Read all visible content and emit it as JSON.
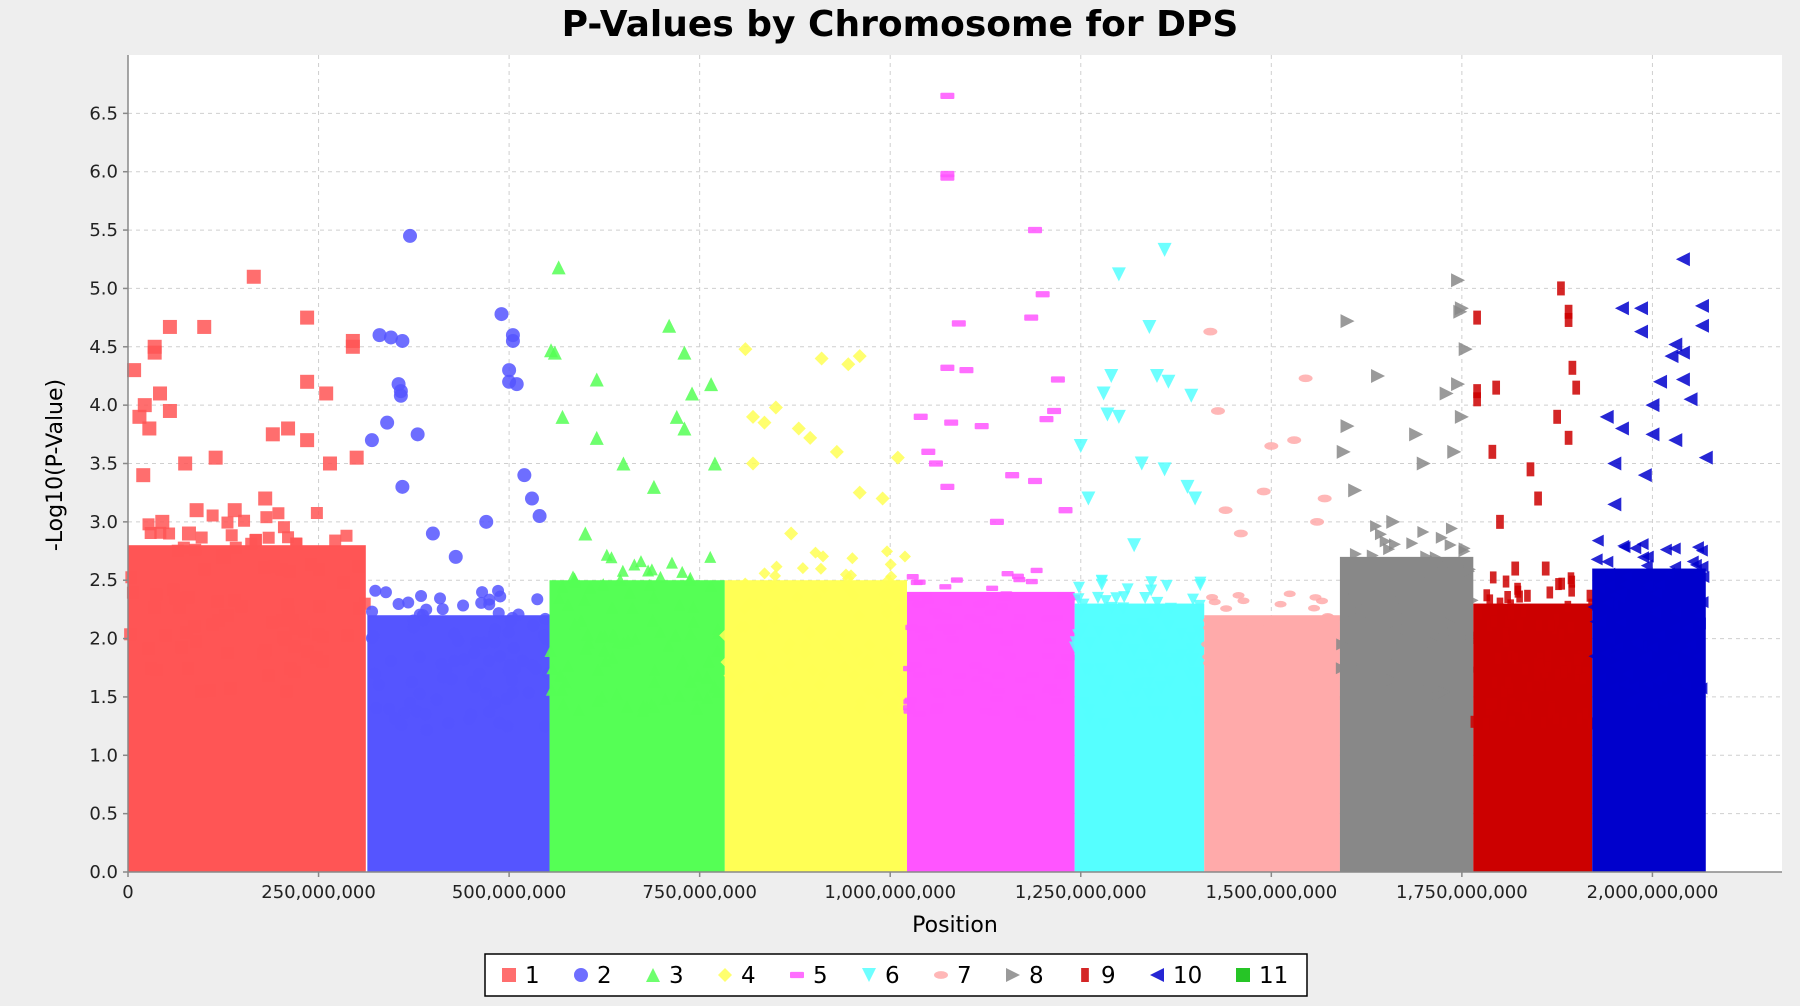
{
  "chart_data": {
    "type": "scatter",
    "title": "P-Values by Chromosome for DPS",
    "xlabel": "Position",
    "ylabel": "-Log10(P-Value)",
    "xlim": [
      0,
      2170000000
    ],
    "ylim": [
      0,
      7.0
    ],
    "x_ticks": [
      0,
      250000000,
      500000000,
      750000000,
      1000000000,
      1250000000,
      1500000000,
      1750000000,
      2000000000
    ],
    "x_tick_labels": [
      "0",
      "250,000,000",
      "500,000,000",
      "750,000,000",
      "1,000,000,000",
      "1,250,000,000",
      "1,500,000,000",
      "1,750,000,000",
      "2,000,000,000"
    ],
    "y_ticks": [
      0,
      0.5,
      1,
      1.5,
      2,
      2.5,
      3,
      3.5,
      4,
      4.5,
      5,
      5.5,
      6,
      6.5
    ],
    "y_tick_labels": [
      "0.0",
      "0.5",
      "1.0",
      "1.5",
      "2.0",
      "2.5",
      "3.0",
      "3.5",
      "4.0",
      "4.5",
      "5.0",
      "5.5",
      "6.0",
      "6.5"
    ],
    "grid": true,
    "legend_position": "bottom-center",
    "series": [
      {
        "name": "1",
        "color": "#ff5555",
        "marker": "square",
        "range": [
          0,
          312000000
        ],
        "base_top": 2.8,
        "points": [
          [
            8000000,
            4.3
          ],
          [
            15000000,
            3.9
          ],
          [
            22000000,
            4.0
          ],
          [
            28000000,
            3.8
          ],
          [
            35000000,
            4.5
          ],
          [
            35000000,
            4.45
          ],
          [
            42000000,
            4.1
          ],
          [
            55000000,
            4.67
          ],
          [
            55000000,
            3.95
          ],
          [
            75000000,
            3.5
          ],
          [
            90000000,
            3.1
          ],
          [
            100000000,
            4.67
          ],
          [
            115000000,
            3.55
          ],
          [
            125000000,
            2.7
          ],
          [
            165000000,
            5.1
          ],
          [
            190000000,
            3.75
          ],
          [
            210000000,
            3.8
          ],
          [
            235000000,
            4.75
          ],
          [
            235000000,
            4.2
          ],
          [
            235000000,
            3.7
          ],
          [
            260000000,
            4.1
          ],
          [
            265000000,
            3.5
          ],
          [
            295000000,
            4.55
          ],
          [
            295000000,
            4.5
          ],
          [
            300000000,
            3.55
          ],
          [
            20000000,
            3.4
          ],
          [
            45000000,
            3.0
          ],
          [
            80000000,
            2.9
          ],
          [
            140000000,
            3.1
          ],
          [
            180000000,
            3.2
          ]
        ]
      },
      {
        "name": "2",
        "color": "#5555ff",
        "marker": "circle",
        "range": [
          314000000,
          553000000
        ],
        "base_top": 2.2,
        "points": [
          [
            320000000,
            3.7
          ],
          [
            330000000,
            4.6
          ],
          [
            340000000,
            3.85
          ],
          [
            345000000,
            4.58
          ],
          [
            355000000,
            4.18
          ],
          [
            360000000,
            4.55
          ],
          [
            358000000,
            4.12
          ],
          [
            358000000,
            4.08
          ],
          [
            370000000,
            5.45
          ],
          [
            380000000,
            3.75
          ],
          [
            490000000,
            4.78
          ],
          [
            505000000,
            4.6
          ],
          [
            505000000,
            4.55
          ],
          [
            500000000,
            4.3
          ],
          [
            500000000,
            4.2
          ],
          [
            510000000,
            4.18
          ],
          [
            520000000,
            3.4
          ],
          [
            400000000,
            2.9
          ],
          [
            430000000,
            2.7
          ],
          [
            470000000,
            3.0
          ],
          [
            530000000,
            3.2
          ],
          [
            540000000,
            3.05
          ],
          [
            360000000,
            3.3
          ]
        ]
      },
      {
        "name": "3",
        "color": "#55ff55",
        "marker": "triangle-up",
        "range": [
          553000000,
          783000000
        ],
        "base_top": 2.5,
        "points": [
          [
            555000000,
            4.47
          ],
          [
            560000000,
            4.45
          ],
          [
            565000000,
            5.18
          ],
          [
            570000000,
            3.9
          ],
          [
            615000000,
            4.22
          ],
          [
            615000000,
            3.72
          ],
          [
            710000000,
            4.68
          ],
          [
            730000000,
            4.45
          ],
          [
            730000000,
            3.8
          ],
          [
            740000000,
            4.1
          ],
          [
            765000000,
            4.18
          ],
          [
            770000000,
            3.5
          ],
          [
            650000000,
            3.5
          ],
          [
            690000000,
            3.3
          ],
          [
            720000000,
            3.9
          ],
          [
            600000000,
            2.9
          ]
        ]
      },
      {
        "name": "4",
        "color": "#ffff55",
        "marker": "diamond",
        "range": [
          783000000,
          1022000000
        ],
        "base_top": 2.5,
        "points": [
          [
            810000000,
            4.48
          ],
          [
            820000000,
            3.9
          ],
          [
            835000000,
            3.85
          ],
          [
            850000000,
            3.98
          ],
          [
            880000000,
            3.8
          ],
          [
            895000000,
            3.72
          ],
          [
            910000000,
            4.4
          ],
          [
            945000000,
            4.35
          ],
          [
            960000000,
            4.42
          ],
          [
            930000000,
            3.6
          ],
          [
            1010000000,
            3.55
          ],
          [
            820000000,
            3.5
          ],
          [
            960000000,
            3.25
          ],
          [
            870000000,
            2.9
          ],
          [
            990000000,
            3.2
          ]
        ]
      },
      {
        "name": "5",
        "color": "#ff55ff",
        "marker": "dash",
        "range": [
          1022000000,
          1242000000
        ],
        "base_top": 2.4,
        "points": [
          [
            1075000000,
            6.65
          ],
          [
            1075000000,
            5.98
          ],
          [
            1075000000,
            5.95
          ],
          [
            1090000000,
            4.7
          ],
          [
            1075000000,
            4.32
          ],
          [
            1100000000,
            4.3
          ],
          [
            1190000000,
            5.5
          ],
          [
            1200000000,
            4.95
          ],
          [
            1185000000,
            4.75
          ],
          [
            1220000000,
            4.22
          ],
          [
            1215000000,
            3.95
          ],
          [
            1205000000,
            3.88
          ],
          [
            1120000000,
            3.82
          ],
          [
            1080000000,
            3.85
          ],
          [
            1040000000,
            3.9
          ],
          [
            1050000000,
            3.6
          ],
          [
            1060000000,
            3.5
          ],
          [
            1075000000,
            3.3
          ],
          [
            1160000000,
            3.4
          ],
          [
            1190000000,
            3.35
          ],
          [
            1140000000,
            3.0
          ],
          [
            1230000000,
            3.1
          ]
        ]
      },
      {
        "name": "6",
        "color": "#55ffff",
        "marker": "triangle-down",
        "range": [
          1242000000,
          1412000000
        ],
        "base_top": 2.3,
        "points": [
          [
            1300000000,
            5.12
          ],
          [
            1360000000,
            5.33
          ],
          [
            1340000000,
            4.67
          ],
          [
            1290000000,
            4.25
          ],
          [
            1280000000,
            4.1
          ],
          [
            1350000000,
            4.25
          ],
          [
            1365000000,
            4.2
          ],
          [
            1395000000,
            4.08
          ],
          [
            1285000000,
            3.92
          ],
          [
            1300000000,
            3.9
          ],
          [
            1250000000,
            3.65
          ],
          [
            1330000000,
            3.5
          ],
          [
            1360000000,
            3.45
          ],
          [
            1390000000,
            3.3
          ],
          [
            1400000000,
            3.2
          ],
          [
            1260000000,
            3.2
          ],
          [
            1320000000,
            2.8
          ]
        ]
      },
      {
        "name": "7",
        "color": "#ffaaaa",
        "marker": "ellipse",
        "range": [
          1412000000,
          1590000000
        ],
        "base_top": 2.2,
        "points": [
          [
            1420000000,
            4.63
          ],
          [
            1430000000,
            3.95
          ],
          [
            1545000000,
            4.23
          ],
          [
            1530000000,
            3.7
          ],
          [
            1500000000,
            3.65
          ],
          [
            1490000000,
            3.26
          ],
          [
            1440000000,
            3.1
          ],
          [
            1460000000,
            2.9
          ],
          [
            1570000000,
            3.2
          ],
          [
            1560000000,
            3.0
          ]
        ]
      },
      {
        "name": "8",
        "color": "#888888",
        "marker": "triangle-right",
        "range": [
          1590000000,
          1765000000
        ],
        "base_top": 2.7,
        "points": [
          [
            1600000000,
            4.72
          ],
          [
            1600000000,
            3.82
          ],
          [
            1595000000,
            3.6
          ],
          [
            1640000000,
            4.25
          ],
          [
            1745000000,
            5.07
          ],
          [
            1750000000,
            4.83
          ],
          [
            1748000000,
            4.8
          ],
          [
            1755000000,
            4.48
          ],
          [
            1730000000,
            4.1
          ],
          [
            1745000000,
            4.18
          ],
          [
            1750000000,
            3.9
          ],
          [
            1690000000,
            3.75
          ],
          [
            1700000000,
            3.5
          ],
          [
            1740000000,
            3.6
          ],
          [
            1610000000,
            3.27
          ],
          [
            1660000000,
            3.0
          ]
        ]
      },
      {
        "name": "9",
        "color": "#cc0000",
        "marker": "small-rect",
        "range": [
          1765000000,
          1921000000
        ],
        "base_top": 2.3,
        "points": [
          [
            1770000000,
            4.75
          ],
          [
            1770000000,
            4.12
          ],
          [
            1770000000,
            4.05
          ],
          [
            1795000000,
            4.15
          ],
          [
            1880000000,
            5.0
          ],
          [
            1890000000,
            4.8
          ],
          [
            1890000000,
            4.73
          ],
          [
            1895000000,
            4.32
          ],
          [
            1900000000,
            4.15
          ],
          [
            1875000000,
            3.9
          ],
          [
            1890000000,
            3.72
          ],
          [
            1790000000,
            3.6
          ],
          [
            1800000000,
            3.0
          ],
          [
            1840000000,
            3.45
          ],
          [
            1850000000,
            3.2
          ],
          [
            1860000000,
            2.6
          ],
          [
            1820000000,
            2.6
          ]
        ]
      },
      {
        "name": "10",
        "color": "#0000cc",
        "marker": "triangle-left",
        "range": [
          1921000000,
          2070000000
        ],
        "base_top": 2.6,
        "points": [
          [
            2040000000,
            5.25
          ],
          [
            2065000000,
            4.85
          ],
          [
            1960000000,
            4.83
          ],
          [
            1985000000,
            4.83
          ],
          [
            1985000000,
            4.63
          ],
          [
            2030000000,
            4.52
          ],
          [
            2040000000,
            4.45
          ],
          [
            2025000000,
            4.42
          ],
          [
            2065000000,
            4.68
          ],
          [
            2010000000,
            4.2
          ],
          [
            2040000000,
            4.22
          ],
          [
            2000000000,
            4.0
          ],
          [
            2050000000,
            4.05
          ],
          [
            1940000000,
            3.9
          ],
          [
            1960000000,
            3.8
          ],
          [
            1950000000,
            3.5
          ],
          [
            2000000000,
            3.75
          ],
          [
            2030000000,
            3.7
          ],
          [
            2070000000,
            3.55
          ],
          [
            1990000000,
            3.4
          ],
          [
            1950000000,
            3.15
          ]
        ]
      },
      {
        "name": "11",
        "color": "#00bb00",
        "marker": "square",
        "range": null,
        "base_top": 0,
        "points": []
      }
    ]
  }
}
